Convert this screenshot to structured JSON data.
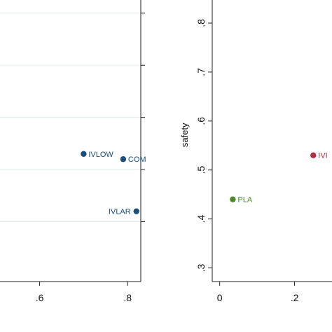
{
  "chart_data": [
    {
      "type": "scatter",
      "title": "",
      "xlabel": "",
      "ylabel": "",
      "xlim": [
        0.4,
        0.83
      ],
      "ylim": [
        0.3,
        0.84
      ],
      "x_ticks": [
        0.6,
        0.8
      ],
      "x_tick_labels": [
        ".6",
        ".8"
      ],
      "y_ticks": [
        0.4,
        0.5,
        0.6,
        0.7,
        0.8
      ],
      "grid": true,
      "points": [
        {
          "label": "IVLOW",
          "x": 0.7,
          "y": 0.53,
          "color": "#1a4f7a"
        },
        {
          "label": "COM",
          "x": 0.79,
          "y": 0.52,
          "color": "#1a4f7a"
        },
        {
          "label": "IVLAR",
          "x": 0.82,
          "y": 0.42,
          "color": "#1a4f7a"
        }
      ]
    },
    {
      "type": "scatter",
      "title": "",
      "xlabel": "",
      "ylabel": "safety",
      "xlim": [
        -0.02,
        0.3
      ],
      "ylim": [
        0.285,
        0.84
      ],
      "x_ticks": [
        0,
        0.2
      ],
      "x_tick_labels": [
        "0",
        ".2"
      ],
      "y_ticks": [
        0.3,
        0.4,
        0.5,
        0.6,
        0.7,
        0.8
      ],
      "y_tick_labels": [
        ".3",
        ".4",
        ".5",
        ".6",
        ".7",
        ".8"
      ],
      "grid": false,
      "points": [
        {
          "label": "PLA",
          "x": 0.035,
          "y": 0.44,
          "color": "#4a8c2a"
        },
        {
          "label": "IVI",
          "x": 0.25,
          "y": 0.53,
          "color": "#b0313f"
        }
      ]
    }
  ]
}
